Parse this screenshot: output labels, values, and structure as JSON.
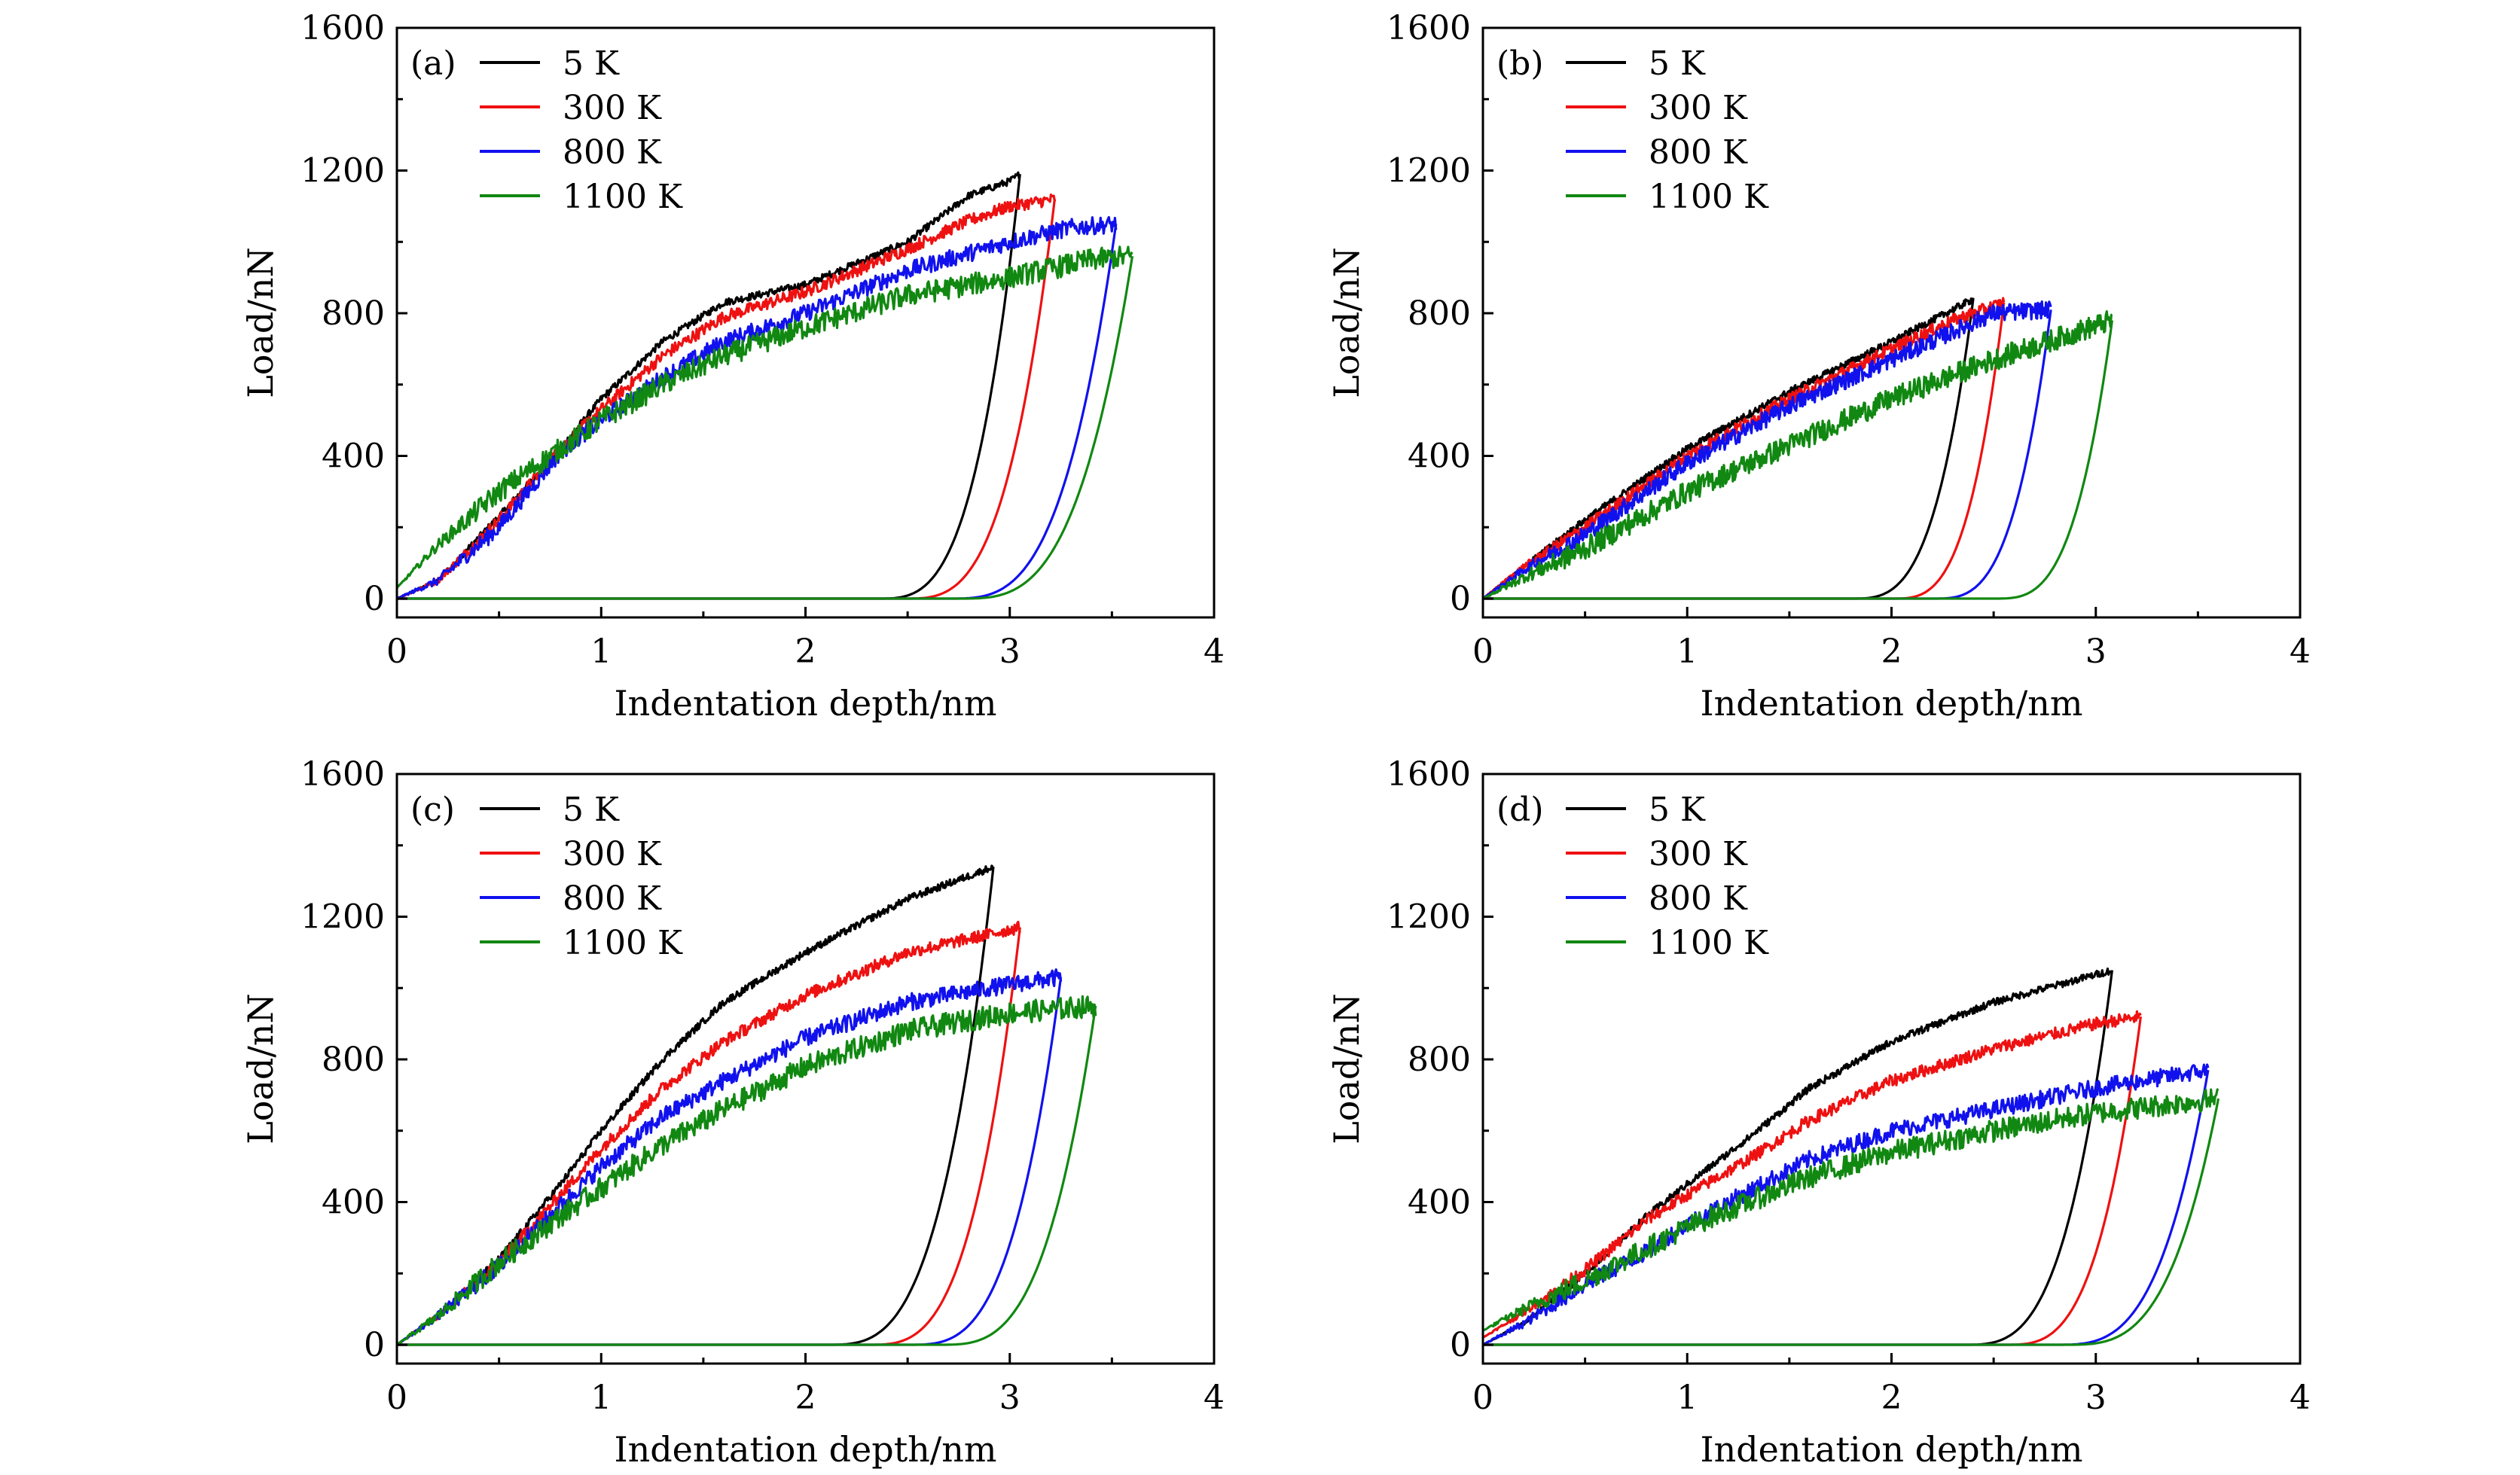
{
  "colors": {
    "5 K": "#000000",
    "300 K": "#ee1111",
    "800 K": "#1111ee",
    "1100 K": "#118811"
  },
  "chart_data": [
    {
      "type": "line",
      "panel_label": "(a)",
      "xlabel": "Indentation depth/nm",
      "ylabel": "Load/nN",
      "xlim": [
        0,
        4
      ],
      "ylim": [
        0,
        1600
      ],
      "xticks": [
        "0",
        "1",
        "2",
        "3",
        "4"
      ],
      "yticks": [
        "0",
        "400",
        "800",
        "1200",
        "1600"
      ],
      "legend_position": "top-left",
      "series": [
        {
          "name": "5 K",
          "loading": {
            "x": [
              0,
              0.2,
              0.5,
              0.8,
              1.0,
              1.3,
              1.6,
              2.0,
              2.5,
              2.8,
              3.0,
              3.05
            ],
            "y": [
              0,
              50,
              230,
              420,
              560,
              720,
              830,
              880,
              1000,
              1130,
              1170,
              1190
            ]
          },
          "unloading": {
            "peak_x": 3.05,
            "peak_y": 1190,
            "residual_x": 2.35
          }
        },
        {
          "name": "300 K",
          "loading": {
            "x": [
              0,
              0.2,
              0.5,
              0.8,
              1.0,
              1.3,
              1.6,
              2.0,
              2.5,
              2.8,
              3.0,
              3.22
            ],
            "y": [
              0,
              50,
              220,
              420,
              530,
              680,
              790,
              860,
              980,
              1060,
              1100,
              1120
            ]
          },
          "unloading": {
            "peak_x": 3.22,
            "peak_y": 1120,
            "residual_x": 2.48
          }
        },
        {
          "name": "800 K",
          "loading": {
            "x": [
              0,
              0.2,
              0.5,
              0.8,
              1.0,
              1.3,
              1.6,
              2.0,
              2.5,
              3.0,
              3.3,
              3.52
            ],
            "y": [
              0,
              50,
              200,
              410,
              500,
              620,
              720,
              800,
              920,
              1000,
              1040,
              1050
            ]
          },
          "unloading": {
            "peak_x": 3.52,
            "peak_y": 1050,
            "residual_x": 2.7
          }
        },
        {
          "name": "1100 K",
          "loading": {
            "x": [
              0,
              0.2,
              0.5,
              0.8,
              1.0,
              1.3,
              1.6,
              2.0,
              2.5,
              3.0,
              3.4,
              3.6
            ],
            "y": [
              30,
              150,
              300,
              420,
              500,
              600,
              680,
              760,
              850,
              900,
              950,
              960
            ]
          },
          "unloading": {
            "peak_x": 3.6,
            "peak_y": 960,
            "residual_x": 2.75
          }
        }
      ]
    },
    {
      "type": "line",
      "panel_label": "(b)",
      "xlabel": "Indentation depth/nm",
      "ylabel": "Load/nN",
      "xlim": [
        0,
        4
      ],
      "ylim": [
        0,
        1600
      ],
      "xticks": [
        "0",
        "1",
        "2",
        "3",
        "4"
      ],
      "yticks": [
        "0",
        "400",
        "800",
        "1200",
        "1600"
      ],
      "legend_position": "top-left",
      "series": [
        {
          "name": "5 K",
          "loading": {
            "x": [
              0,
              0.2,
              0.5,
              1.0,
              1.5,
              2.0,
              2.2,
              2.4
            ],
            "y": [
              0,
              90,
              220,
              420,
              580,
              720,
              780,
              840
            ]
          },
          "unloading": {
            "peak_x": 2.4,
            "peak_y": 840,
            "residual_x": 1.8
          }
        },
        {
          "name": "300 K",
          "loading": {
            "x": [
              0,
              0.2,
              0.5,
              1.0,
              1.5,
              2.0,
              2.3,
              2.55
            ],
            "y": [
              0,
              90,
              200,
              400,
              560,
              700,
              780,
              830
            ]
          },
          "unloading": {
            "peak_x": 2.55,
            "peak_y": 830,
            "residual_x": 2.0
          }
        },
        {
          "name": "800 K",
          "loading": {
            "x": [
              0,
              0.2,
              0.5,
              1.0,
              1.5,
              2.0,
              2.5,
              2.78
            ],
            "y": [
              0,
              80,
              180,
              380,
              540,
              670,
              800,
              810
            ]
          },
          "unloading": {
            "peak_x": 2.78,
            "peak_y": 810,
            "residual_x": 2.2
          }
        },
        {
          "name": "1100 K",
          "loading": {
            "x": [
              0,
              0.2,
              0.5,
              1.0,
              1.5,
              2.0,
              2.5,
              3.08
            ],
            "y": [
              0,
              60,
              140,
              300,
              430,
              560,
              670,
              780
            ]
          },
          "unloading": {
            "peak_x": 3.08,
            "peak_y": 780,
            "residual_x": 2.5
          }
        }
      ]
    },
    {
      "type": "line",
      "panel_label": "(c)",
      "xlabel": "Indentation depth/nm",
      "ylabel": "Load/nN",
      "xlim": [
        0,
        4
      ],
      "ylim": [
        0,
        1600
      ],
      "xticks": [
        "0",
        "1",
        "2",
        "3",
        "4"
      ],
      "yticks": [
        "0",
        "400",
        "800",
        "1200",
        "1600"
      ],
      "legend_position": "top-left",
      "series": [
        {
          "name": "5 K",
          "loading": {
            "x": [
              0,
              0.2,
              0.5,
              0.8,
              1.0,
              1.3,
              1.6,
              2.0,
              2.5,
              2.92
            ],
            "y": [
              0,
              80,
              240,
              450,
              600,
              800,
              960,
              1100,
              1250,
              1340
            ]
          },
          "unloading": {
            "peak_x": 2.92,
            "peak_y": 1340,
            "residual_x": 2.1
          }
        },
        {
          "name": "300 K",
          "loading": {
            "x": [
              0,
              0.2,
              0.5,
              0.8,
              1.0,
              1.3,
              1.6,
              2.0,
              2.5,
              3.05
            ],
            "y": [
              0,
              80,
              230,
              420,
              550,
              720,
              850,
              980,
              1100,
              1170
            ]
          },
          "unloading": {
            "peak_x": 3.05,
            "peak_y": 1170,
            "residual_x": 2.3
          }
        },
        {
          "name": "800 K",
          "loading": {
            "x": [
              0,
              0.2,
              0.5,
              0.8,
              1.0,
              1.3,
              1.6,
              2.0,
              2.5,
              3.0,
              3.25
            ],
            "y": [
              0,
              80,
              220,
              390,
              500,
              640,
              740,
              860,
              960,
              1010,
              1030
            ]
          },
          "unloading": {
            "peak_x": 3.25,
            "peak_y": 1030,
            "residual_x": 2.5
          }
        },
        {
          "name": "1100 K",
          "loading": {
            "x": [
              0,
              0.2,
              0.5,
              0.8,
              1.0,
              1.3,
              1.6,
              2.0,
              2.5,
              3.0,
              3.42
            ],
            "y": [
              0,
              80,
              230,
              360,
              440,
              560,
              660,
              780,
              880,
              930,
              950
            ]
          },
          "unloading": {
            "peak_x": 3.42,
            "peak_y": 950,
            "residual_x": 2.65
          }
        }
      ]
    },
    {
      "type": "line",
      "panel_label": "(d)",
      "xlabel": "Indentation depth/nm",
      "ylabel": "Load/nN",
      "xlim": [
        0,
        4
      ],
      "ylim": [
        0,
        1600
      ],
      "xticks": [
        "0",
        "1",
        "2",
        "3",
        "4"
      ],
      "yticks": [
        "0",
        "400",
        "800",
        "1200",
        "1600"
      ],
      "legend_position": "top-left",
      "series": [
        {
          "name": "5 K",
          "loading": {
            "x": [
              0,
              0.2,
              0.5,
              0.8,
              1.0,
              1.3,
              1.6,
              2.0,
              2.5,
              3.08
            ],
            "y": [
              0,
              60,
              200,
              360,
              450,
              580,
              720,
              850,
              960,
              1050
            ]
          },
          "unloading": {
            "peak_x": 3.08,
            "peak_y": 1050,
            "residual_x": 2.35
          }
        },
        {
          "name": "300 K",
          "loading": {
            "x": [
              0,
              0.2,
              0.5,
              0.8,
              1.0,
              1.3,
              1.6,
              2.0,
              2.5,
              3.0,
              3.22
            ],
            "y": [
              20,
              90,
              210,
              350,
              420,
              520,
              630,
              740,
              830,
              900,
              920
            ]
          },
          "unloading": {
            "peak_x": 3.22,
            "peak_y": 920,
            "residual_x": 2.55
          }
        },
        {
          "name": "800 K",
          "loading": {
            "x": [
              0,
              0.2,
              0.5,
              0.8,
              1.0,
              1.3,
              1.6,
              2.0,
              2.5,
              3.0,
              3.55
            ],
            "y": [
              0,
              60,
              170,
              260,
              340,
              430,
              520,
              600,
              660,
              720,
              770
            ]
          },
          "unloading": {
            "peak_x": 3.55,
            "peak_y": 770,
            "residual_x": 2.8
          }
        },
        {
          "name": "1100 K",
          "loading": {
            "x": [
              0,
              0.2,
              0.5,
              0.8,
              1.0,
              1.3,
              1.6,
              2.0,
              2.5,
              3.0,
              3.6
            ],
            "y": [
              40,
              100,
              180,
              270,
              330,
              400,
              470,
              540,
              600,
              650,
              690
            ]
          },
          "unloading": {
            "peak_x": 3.6,
            "peak_y": 690,
            "residual_x": 2.85
          }
        }
      ]
    }
  ]
}
